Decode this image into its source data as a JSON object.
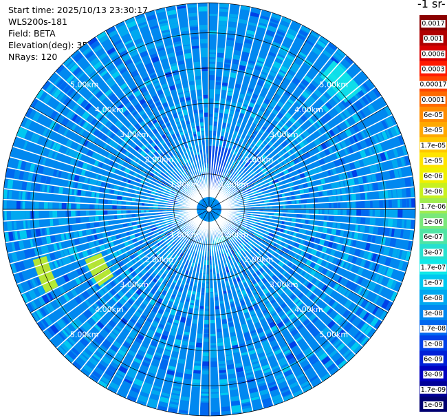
{
  "header": {
    "start_time": "Start time: 2025/10/13 23:30:17",
    "instrument": "WLS200s-181",
    "field": "Field: BETA",
    "elevation": "Elevation(deg): 35.00",
    "nrays": "NRays: 120"
  },
  "colorbar": {
    "title_fragment": "-1 sr-",
    "levels": [
      {
        "label": "0.0017",
        "color": "#8a0000"
      },
      {
        "label": "0.001",
        "color": "#b00000"
      },
      {
        "label": "0.0006",
        "color": "#d80000"
      },
      {
        "label": "0.0003",
        "color": "#ff1a00"
      },
      {
        "label": "0.00017",
        "color": "#ff4400"
      },
      {
        "label": "0.0001",
        "color": "#ff6a00"
      },
      {
        "label": "6e-05",
        "color": "#ff8c00"
      },
      {
        "label": "3e-05",
        "color": "#ffa800"
      },
      {
        "label": "1.7e-05",
        "color": "#ffc800"
      },
      {
        "label": "1e-05",
        "color": "#ffe400"
      },
      {
        "label": "6e-06",
        "color": "#f0f000"
      },
      {
        "label": "3e-06",
        "color": "#c8f020"
      },
      {
        "label": "1.7e-06",
        "color": "#a0ec50"
      },
      {
        "label": "1e-06",
        "color": "#7ae87a"
      },
      {
        "label": "6e-07",
        "color": "#50e4a4"
      },
      {
        "label": "3e-07",
        "color": "#28e0d0"
      },
      {
        "label": "1.7e-07",
        "color": "#10e8e8"
      },
      {
        "label": "1e-07",
        "color": "#00c8f0"
      },
      {
        "label": "6e-08",
        "color": "#00a8f0"
      },
      {
        "label": "3e-08",
        "color": "#0088f0"
      },
      {
        "label": "1.7e-08",
        "color": "#0068f0"
      },
      {
        "label": "1e-08",
        "color": "#0040e8"
      },
      {
        "label": "6e-09",
        "color": "#0020d8"
      },
      {
        "label": "3e-09",
        "color": "#0000c0"
      },
      {
        "label": "1.7e-09",
        "color": "#000098"
      },
      {
        "label": "1e-09",
        "color": "#000070"
      }
    ]
  },
  "chart_data": {
    "type": "heatmap",
    "projection": "polar",
    "range_rings": [
      {
        "range_km": 1,
        "label": "1.00km"
      },
      {
        "range_km": 2,
        "label": "2.00km"
      },
      {
        "range_km": 3,
        "label": "3.00km"
      },
      {
        "range_km": 4,
        "label": "4.00km"
      },
      {
        "range_km": 5,
        "label": "5.00km"
      }
    ],
    "max_range_km": 5.85,
    "azimuth_step_deg": 3,
    "spoke_step_deg": 30,
    "features": [
      {
        "description_level": "1e-08",
        "azimuth_deg_from": 0,
        "azimuth_deg_to": 20,
        "range_km_from": 0.5,
        "range_km_to": 1.8
      },
      {
        "description_level": "1.7e-07",
        "azimuth_deg_from": 150,
        "azimuth_deg_to": 170,
        "range_km_from": 0.85,
        "range_km_to": 1.0
      },
      {
        "description_level": "1.7e-07",
        "azimuth_deg_from": 40,
        "azimuth_deg_to": 52,
        "range_km_from": 4.9,
        "range_km_to": 5.5
      },
      {
        "description_level": "3e-06",
        "azimuth_deg_from": 235,
        "azimuth_deg_to": 248,
        "range_km_from": 3.3,
        "range_km_to": 3.8
      },
      {
        "description_level": "3e-06",
        "azimuth_deg_from": 243,
        "azimuth_deg_to": 254,
        "range_km_from": 4.8,
        "range_km_to": 5.2
      }
    ]
  }
}
